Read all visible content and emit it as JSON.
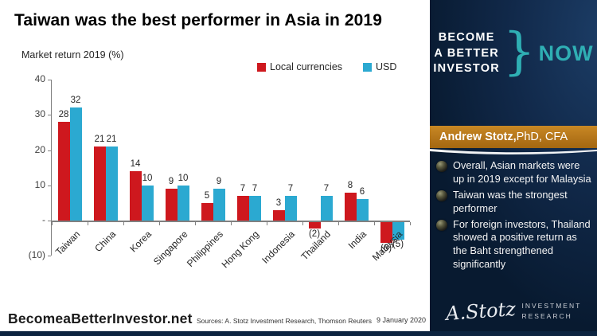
{
  "title": "Taiwan was the best performer in Asia in 2019",
  "chart_data": {
    "type": "bar",
    "title": "Taiwan was the best performer in Asia in 2019",
    "ylabel": "Market return 2019 (%)",
    "categories": [
      "Taiwan",
      "China",
      "Korea",
      "Singapore",
      "Philippines",
      "Hong Kong",
      "Indonesia",
      "Thailand",
      "India",
      "Malaysia"
    ],
    "series": [
      {
        "name": "Local currencies",
        "color": "#ce181e",
        "values": [
          28,
          21,
          14,
          9,
          5,
          7,
          3,
          -2,
          8,
          -6
        ]
      },
      {
        "name": "USD",
        "color": "#2ba9d1",
        "values": [
          32,
          21,
          10,
          10,
          9,
          7,
          7,
          7,
          6,
          -5
        ]
      }
    ],
    "ylim": [
      -10,
      40
    ],
    "yticks": [
      {
        "v": 40,
        "label": "40"
      },
      {
        "v": 30,
        "label": "30"
      },
      {
        "v": 20,
        "label": "20"
      },
      {
        "v": 10,
        "label": "10"
      },
      {
        "v": 0,
        "label": "-"
      },
      {
        "v": -10,
        "label": "(10)"
      }
    ],
    "grid": false,
    "legend_position": "top-right",
    "negative_label_format": "parentheses"
  },
  "legend": {
    "items": [
      {
        "label": "Local currencies",
        "color": "#ce181e"
      },
      {
        "label": "USD",
        "color": "#2ba9d1"
      }
    ]
  },
  "footer": {
    "brand": "BecomeaBetterInvestor.net",
    "sources": "Sources: A. Stotz Investment Research, Thomson Reuters",
    "date": "9 January 2020"
  },
  "sidebar": {
    "logo_lines": [
      "BECOME",
      "A BETTER",
      "INVESTOR"
    ],
    "brace": "}",
    "now": "NOW",
    "banner": {
      "name": "Andrew Stotz,",
      "suffix": " PhD, CFA"
    },
    "bullets": [
      "Overall, Asian markets were up in 2019 except for Malaysia",
      "Taiwan was the strongest performer",
      "For foreign investors, Thailand showed a positive return as the Baht strengthened significantly"
    ],
    "logo_script": "A.Stotz",
    "logo_sub_line1": "INVESTMENT",
    "logo_sub_line2": "RESEARCH",
    "colors": {
      "teal": "#2fafb4",
      "navy": "#0d2440",
      "banner_orange": "#b4751a"
    }
  }
}
